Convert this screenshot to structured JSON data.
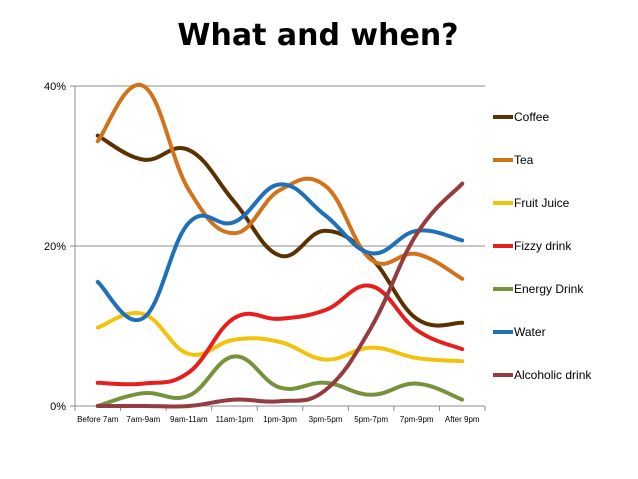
{
  "chart_data": {
    "type": "line",
    "title": "What and when?",
    "xlabel": "",
    "ylabel": "",
    "ylim": [
      0,
      40
    ],
    "y_ticks": [
      {
        "value": 0,
        "label": "0%"
      },
      {
        "value": 20,
        "label": "20%"
      },
      {
        "value": 40,
        "label": "40%"
      }
    ],
    "grid": true,
    "legend_position": "right",
    "categories": [
      "Before 7am",
      "7am-9am",
      "9am-11am",
      "11am-1pm",
      "1pm-3pm",
      "3pm-5pm",
      "5pm-7pm",
      "7pm-9pm",
      "After 9pm"
    ],
    "series": [
      {
        "name": "Coffee",
        "color": "#5a3200",
        "values": [
          33.8,
          30.8,
          32.0,
          25.5,
          18.8,
          21.9,
          18.5,
          10.9,
          10.4
        ]
      },
      {
        "name": "Tea",
        "color": "#d2731c",
        "values": [
          33.1,
          40.0,
          27.0,
          21.6,
          27.0,
          27.5,
          18.3,
          19.0,
          15.9
        ]
      },
      {
        "name": "Fruit Juice",
        "color": "#f2c20c",
        "values": [
          9.8,
          11.5,
          6.5,
          8.3,
          8.0,
          5.8,
          7.3,
          6.0,
          5.6
        ]
      },
      {
        "name": "Fizzy drink",
        "color": "#e61e1e",
        "values": [
          2.9,
          2.8,
          4.2,
          11.0,
          10.9,
          12.0,
          15.0,
          9.5,
          7.1
        ]
      },
      {
        "name": "Energy Drink",
        "color": "#77923c",
        "values": [
          0.0,
          1.6,
          1.3,
          6.2,
          2.3,
          2.9,
          1.4,
          2.8,
          0.8
        ]
      },
      {
        "name": "Water",
        "color": "#1f70b8",
        "values": [
          15.5,
          11.0,
          22.9,
          23.0,
          27.7,
          23.8,
          19.1,
          21.9,
          20.7
        ]
      },
      {
        "name": "Alcoholic drink",
        "color": "#943c40",
        "values": [
          0.0,
          0.0,
          0.0,
          0.8,
          0.6,
          2.0,
          9.8,
          21.5,
          27.8
        ]
      }
    ]
  }
}
